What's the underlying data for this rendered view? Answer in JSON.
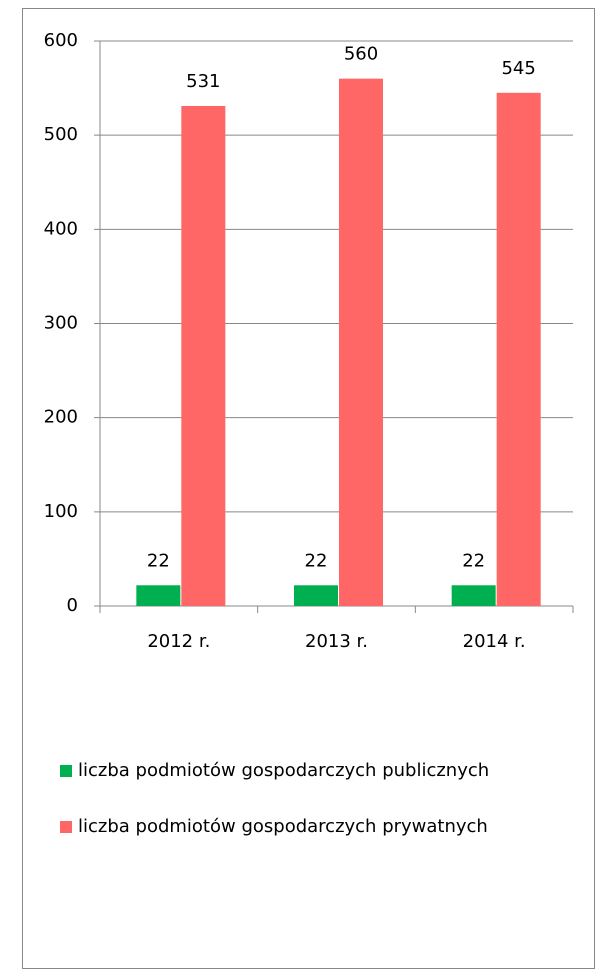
{
  "chart_data": {
    "type": "bar",
    "categories": [
      "2012 r.",
      "2013 r.",
      "2014 r."
    ],
    "series": [
      {
        "name": "liczba podmiotów gospodarczych publicznych",
        "color": "#00b050",
        "values": [
          22,
          22,
          22
        ]
      },
      {
        "name": "liczba podmiotów gospodarczych prywatnych",
        "color": "#ff6666",
        "values": [
          531,
          560,
          545
        ]
      }
    ],
    "ylim": [
      0,
      600
    ],
    "yticks": [
      0,
      100,
      200,
      300,
      400,
      500,
      600
    ],
    "grid": true,
    "legend": "bottom"
  }
}
